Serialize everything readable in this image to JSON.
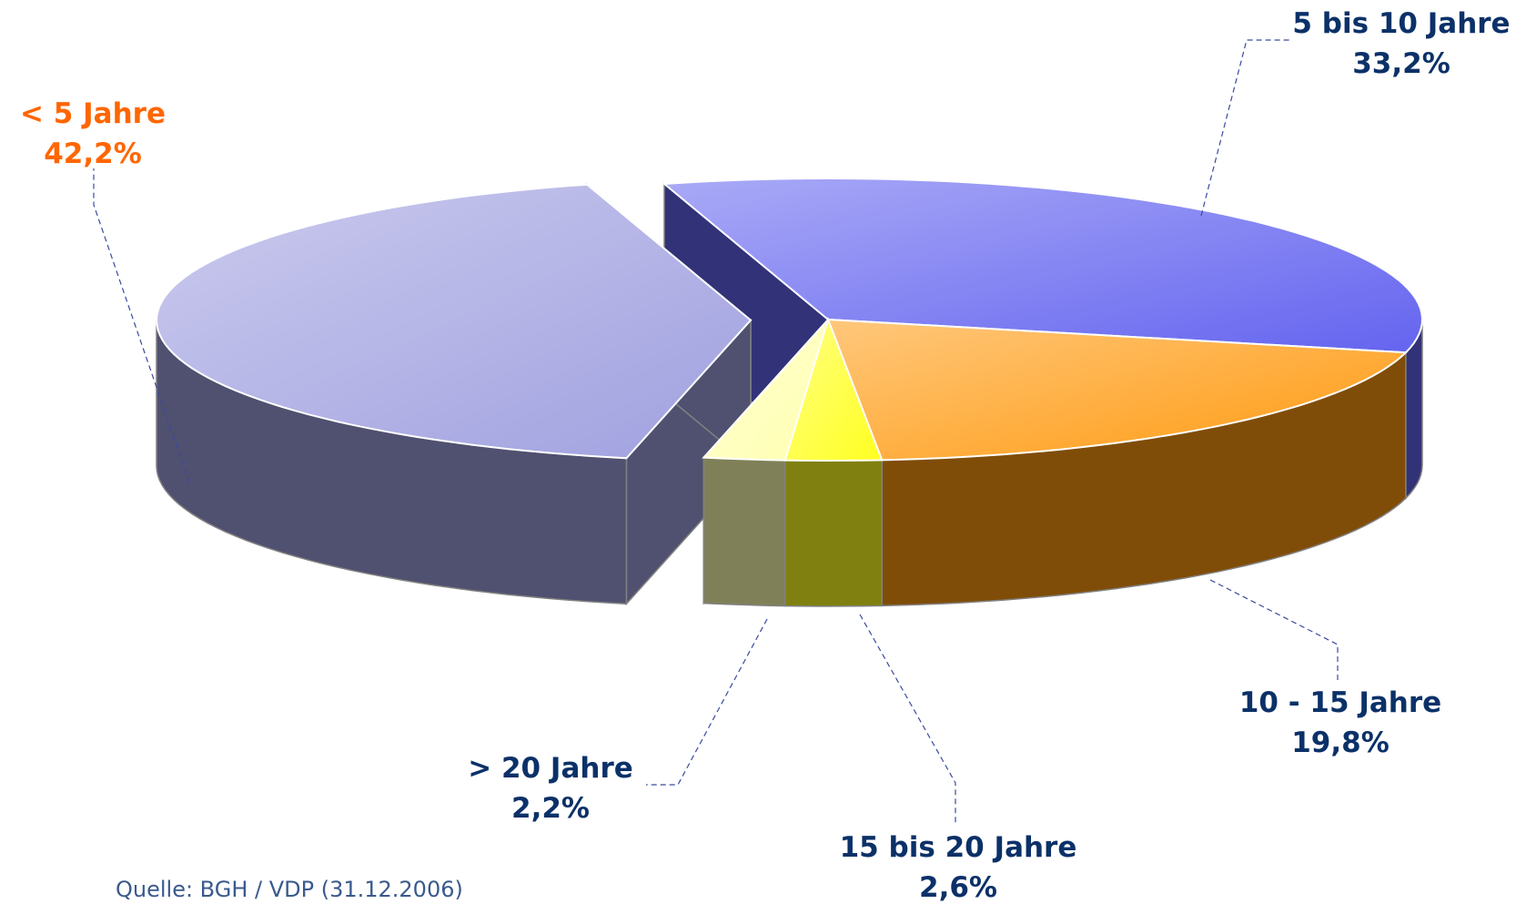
{
  "chart_data": {
    "type": "pie",
    "categories": [
      "5 bis 10 Jahre",
      "10 - 15 Jahre",
      "15 bis 20 Jahre",
      "> 20 Jahre",
      "< 5 Jahre"
    ],
    "values": [
      33.2,
      19.8,
      2.6,
      2.2,
      42.2
    ],
    "value_labels": [
      "33,2%",
      "19,8%",
      "2,6%",
      "2,2%",
      "42,2%"
    ],
    "colors": [
      "#6464f0",
      "#ff9a10",
      "#ffff20",
      "#ffffb0",
      "#a0a0e0"
    ],
    "source": "Quelle: BGH / VDP (31.12.2006)"
  }
}
